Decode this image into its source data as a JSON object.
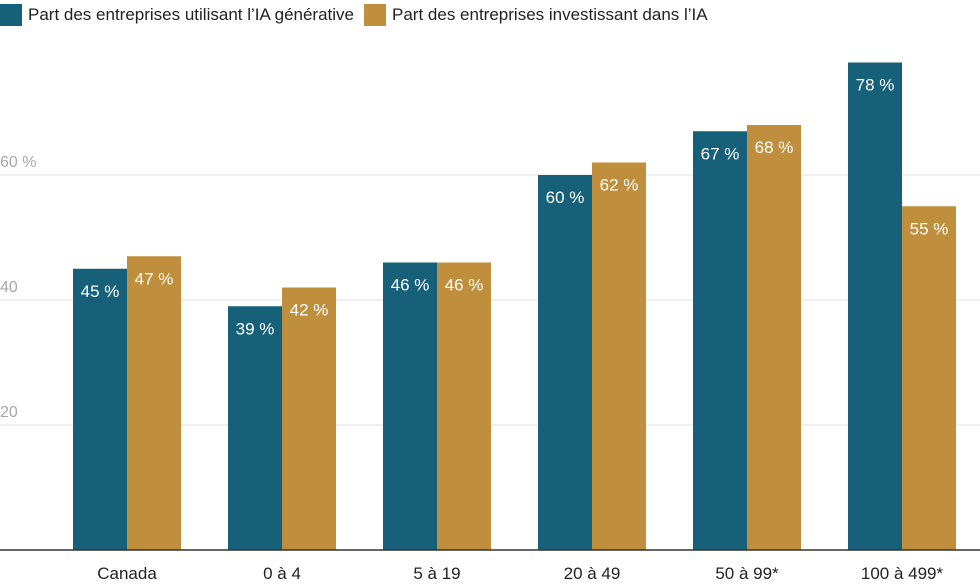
{
  "chart_data": {
    "type": "bar",
    "title": "",
    "xlabel": "",
    "ylabel": "",
    "categories": [
      "Canada",
      "0 à 4",
      "5 à 19",
      "20 à 49",
      "50 à 99*",
      "100 à 499*"
    ],
    "series": [
      {
        "name": "Part des entreprises utilisant l’IA générative",
        "color": "#17607a",
        "values": [
          45,
          39,
          46,
          60,
          67,
          78
        ],
        "labels": [
          "45 %",
          "39 %",
          "46 %",
          "60 %",
          "67 %",
          "78 %"
        ]
      },
      {
        "name": "Part des entreprises investissant dans l’IA",
        "color": "#bf8f3d",
        "values": [
          47,
          42,
          46,
          62,
          68,
          55
        ],
        "labels": [
          "47 %",
          "42 %",
          "46 %",
          "62 %",
          "68 %",
          "55 %"
        ]
      }
    ],
    "ylim": [
      0,
      80
    ],
    "yticks": [
      20,
      40,
      60
    ],
    "ytick_labels": [
      "20",
      "40",
      "60 %"
    ],
    "grid": true,
    "legend": "top-left"
  }
}
